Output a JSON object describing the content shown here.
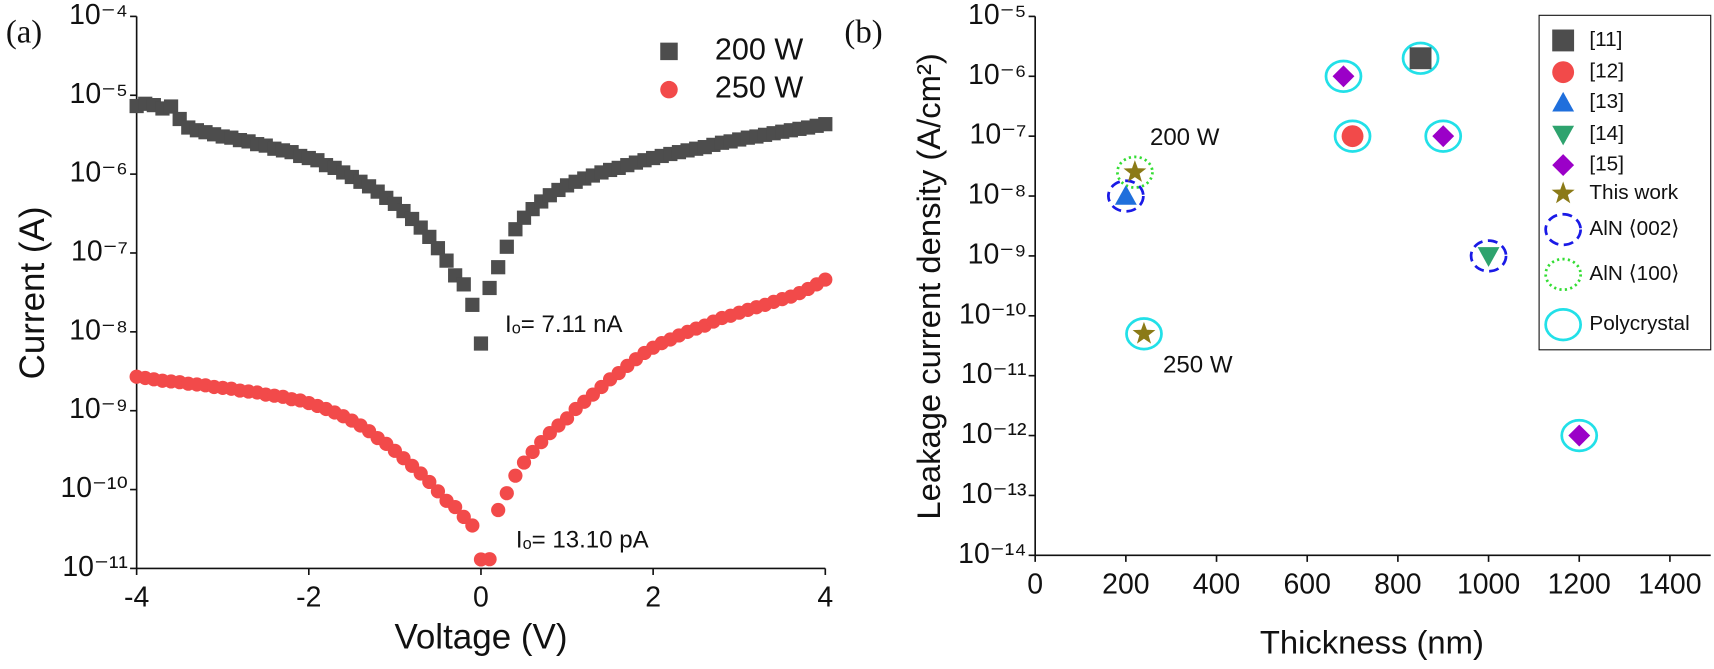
{
  "chart_data": [
    {
      "type": "scatter",
      "panel_label": "(a)",
      "x_label": "Voltage (V)",
      "y_label": "Current (A)",
      "log_y": true,
      "xlim": [
        -4,
        4
      ],
      "xticks": [
        -4,
        -2,
        0,
        2,
        4
      ],
      "ylim": [
        1e-11,
        0.0001
      ],
      "yticks": [
        {
          "value": 1e-11,
          "label": "10⁻¹¹"
        },
        {
          "value": 1e-10,
          "label": "10⁻¹⁰"
        },
        {
          "value": 1e-09,
          "label": "10⁻⁹"
        },
        {
          "value": 1e-08,
          "label": "10⁻⁸"
        },
        {
          "value": 1e-07,
          "label": "10⁻⁷"
        },
        {
          "value": 1e-06,
          "label": "10⁻⁶"
        },
        {
          "value": 1e-05,
          "label": "10⁻⁵"
        },
        {
          "value": 0.0001,
          "label": "10⁻⁴"
        }
      ],
      "annotations": [
        "Iₒ= 7.11 nA",
        "Iₒ= 13.10 pA"
      ],
      "x": [
        -4,
        -3.9,
        -3.8,
        -3.7,
        -3.6,
        -3.5,
        -3.4,
        -3.3,
        -3.2,
        -3.1,
        -3,
        -2.9,
        -2.8,
        -2.7,
        -2.6,
        -2.5,
        -2.4,
        -2.3,
        -2.2,
        -2.1,
        -2,
        -1.9,
        -1.8,
        -1.7,
        -1.6,
        -1.5,
        -1.4,
        -1.3,
        -1.2,
        -1.1,
        -1,
        -0.9,
        -0.8,
        -0.7,
        -0.6,
        -0.5,
        -0.4,
        -0.3,
        -0.2,
        -0.1,
        0,
        0.1,
        0.2,
        0.3,
        0.4,
        0.5,
        0.6,
        0.7,
        0.8,
        0.9,
        1,
        1.1,
        1.2,
        1.3,
        1.4,
        1.5,
        1.6,
        1.7,
        1.8,
        1.9,
        2,
        2.1,
        2.2,
        2.3,
        2.4,
        2.5,
        2.6,
        2.7,
        2.8,
        2.9,
        3,
        3.1,
        3.2,
        3.3,
        3.4,
        3.5,
        3.6,
        3.7,
        3.8,
        3.9,
        4
      ],
      "series": [
        {
          "name": "200 W",
          "color": "#4d4d4d",
          "marker": "square",
          "values": [
            7.3e-06,
            7.8e-06,
            7.5e-06,
            6.8e-06,
            7.2e-06,
            5e-06,
            3.9e-06,
            3.6e-06,
            3.4e-06,
            3.2e-06,
            3e-06,
            2.9e-06,
            2.7e-06,
            2.6e-06,
            2.4e-06,
            2.3e-06,
            2.1e-06,
            2e-06,
            1.9e-06,
            1.7e-06,
            1.6e-06,
            1.5e-06,
            1.3e-06,
            1.2e-06,
            1.05e-06,
            9.2e-07,
            8e-07,
            7e-07,
            6e-07,
            5e-07,
            4.2e-07,
            3.4e-07,
            2.7e-07,
            2.1e-07,
            1.6e-07,
            1.15e-07,
            8e-08,
            5.2e-08,
            4e-08,
            2.2e-08,
            7.11e-09,
            3.6e-08,
            6.6e-08,
            1.2e-07,
            2e-07,
            2.8e-07,
            3.6e-07,
            4.5e-07,
            5.4e-07,
            6.3e-07,
            7.2e-07,
            8e-07,
            8.8e-07,
            9.6e-07,
            1.05e-06,
            1.13e-06,
            1.2e-06,
            1.3e-06,
            1.4e-06,
            1.5e-06,
            1.6e-06,
            1.7e-06,
            1.8e-06,
            1.9e-06,
            2e-06,
            2.1e-06,
            2.2e-06,
            2.35e-06,
            2.5e-06,
            2.6e-06,
            2.75e-06,
            2.9e-06,
            3e-06,
            3.15e-06,
            3.3e-06,
            3.45e-06,
            3.6e-06,
            3.75e-06,
            3.9e-06,
            4.1e-06,
            4.3e-06
          ]
        },
        {
          "name": "250 W",
          "color": "#f24a4a",
          "marker": "circle",
          "values": [
            2.7e-09,
            2.6e-09,
            2.5e-09,
            2.4e-09,
            2.35e-09,
            2.3e-09,
            2.2e-09,
            2.15e-09,
            2.1e-09,
            2e-09,
            1.95e-09,
            1.9e-09,
            1.8e-09,
            1.75e-09,
            1.7e-09,
            1.6e-09,
            1.55e-09,
            1.5e-09,
            1.4e-09,
            1.35e-09,
            1.25e-09,
            1.15e-09,
            1.05e-09,
            9.5e-10,
            8.5e-10,
            7.5e-10,
            6.5e-10,
            5.5e-10,
            4.5e-10,
            3.8e-10,
            3.1e-10,
            2.5e-10,
            2e-10,
            1.6e-10,
            1.25e-10,
            9.5e-11,
            7.2e-11,
            6e-11,
            4.5e-11,
            3.5e-11,
            1.3e-11,
            1.31e-11,
            5.5e-11,
            9e-11,
            1.5e-10,
            2.2e-10,
            3e-10,
            4e-10,
            5.2e-10,
            6.5e-10,
            8e-10,
            1.05e-09,
            1.3e-09,
            1.6e-09,
            2e-09,
            2.5e-09,
            3e-09,
            3.7e-09,
            4.5e-09,
            5.4e-09,
            6.3e-09,
            7.2e-09,
            8e-09,
            9e-09,
            1e-08,
            1.1e-08,
            1.2e-08,
            1.35e-08,
            1.5e-08,
            1.6e-08,
            1.75e-08,
            1.9e-08,
            2.05e-08,
            2.2e-08,
            2.4e-08,
            2.6e-08,
            2.8e-08,
            3.1e-08,
            3.5e-08,
            4e-08,
            4.6e-08
          ]
        }
      ]
    },
    {
      "type": "scatter",
      "panel_label": "(b)",
      "x_label": "Thickness (nm)",
      "y_label": "Leakage current density (A/cm²)",
      "log_y": true,
      "xlim": [
        0,
        1490
      ],
      "xticks": [
        0,
        200,
        400,
        600,
        800,
        1000,
        1200,
        1400
      ],
      "ylim": [
        1e-14,
        1e-05
      ],
      "yticks": [
        {
          "value": 1e-14,
          "label": "10⁻¹⁴"
        },
        {
          "value": 1e-13,
          "label": "10⁻¹³"
        },
        {
          "value": 1e-12,
          "label": "10⁻¹²"
        },
        {
          "value": 1e-11,
          "label": "10⁻¹¹"
        },
        {
          "value": 1e-10,
          "label": "10⁻¹⁰"
        },
        {
          "value": 1e-09,
          "label": "10⁻⁹"
        },
        {
          "value": 1e-08,
          "label": "10⁻⁸"
        },
        {
          "value": 1e-07,
          "label": "10⁻⁷"
        },
        {
          "value": 1e-06,
          "label": "10⁻⁶"
        },
        {
          "value": 1e-05,
          "label": "10⁻⁵"
        }
      ],
      "annotations": [
        "200 W",
        "250 W"
      ],
      "series": [
        {
          "name": "[11]",
          "color": "#4d4d4d",
          "marker": "square",
          "x": [
            850
          ],
          "y": [
            2e-06
          ]
        },
        {
          "name": "[12]",
          "color": "#f24a4a",
          "marker": "circle",
          "x": [
            700
          ],
          "y": [
            1e-07
          ]
        },
        {
          "name": "[13]",
          "color": "#1f6fdc",
          "marker": "triangle",
          "x": [
            200
          ],
          "y": [
            1e-08
          ]
        },
        {
          "name": "[14]",
          "color": "#2ea36e",
          "marker": "triangle-down",
          "x": [
            1000
          ],
          "y": [
            1e-09
          ]
        },
        {
          "name": "[15]",
          "color": "#9b00c8",
          "marker": "diamond",
          "x": [
            680,
            900,
            1200
          ],
          "y": [
            1e-06,
            1e-07,
            1e-12
          ]
        },
        {
          "name": "This work",
          "color": "#8b7a17",
          "marker": "star",
          "x": [
            220,
            240
          ],
          "y": [
            2.5e-08,
            5e-11
          ]
        },
        {
          "name": "AlN ⟨002⟩",
          "color": "#1a1ae6",
          "marker": "ring-dashed",
          "x": [
            200,
            1000
          ],
          "y": [
            1e-08,
            1e-09
          ]
        },
        {
          "name": "AlN ⟨100⟩",
          "color": "#33dd33",
          "marker": "ring-dotted",
          "x": [
            220
          ],
          "y": [
            2.5e-08
          ]
        },
        {
          "name": "Polycrystal",
          "color": "#22e0e8",
          "marker": "ring",
          "x": [
            850,
            700,
            680,
            900,
            1200,
            240
          ],
          "y": [
            2e-06,
            1e-07,
            1e-06,
            1e-07,
            1e-12,
            5e-11
          ]
        }
      ]
    }
  ]
}
